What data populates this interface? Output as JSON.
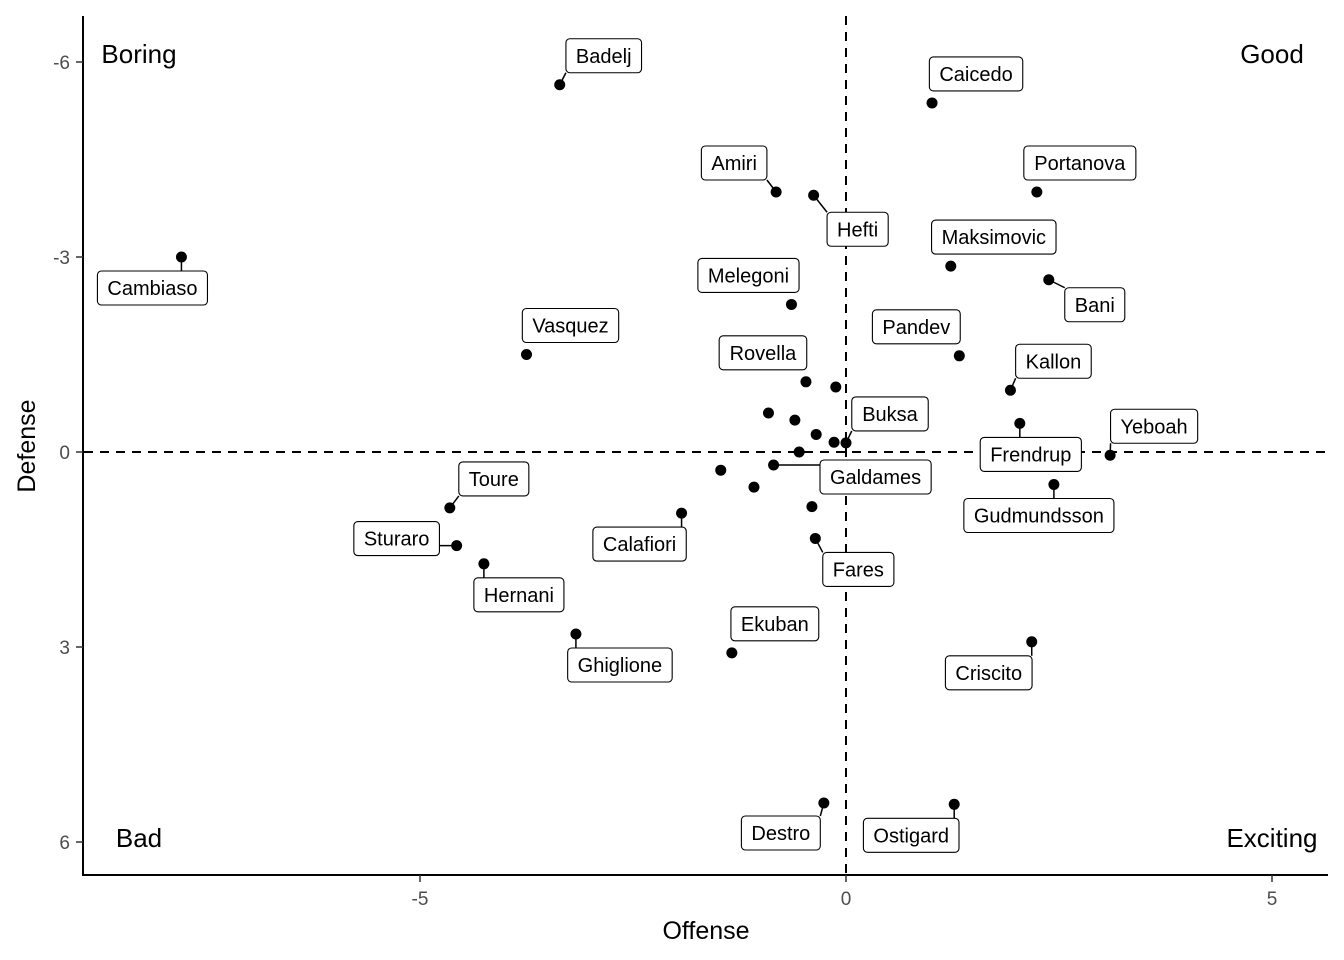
{
  "chart_data": {
    "type": "scatter",
    "title": "",
    "xlabel": "Offense",
    "ylabel": "Defense",
    "xlim": [
      -8.95,
      5.65
    ],
    "ylim": [
      -6.65,
      6.5
    ],
    "y_reversed": true,
    "x_ticks": [
      -5,
      0,
      5
    ],
    "x_tick_labels": [
      "-5",
      "0",
      "5"
    ],
    "y_ticks": [
      -6,
      -3,
      0,
      3,
      6
    ],
    "y_tick_labels": [
      "-6",
      "-3",
      "0",
      "3",
      "6"
    ],
    "reference_lines": {
      "x": 0,
      "y": 0,
      "style": "dashed"
    },
    "grid": false,
    "legend": "none",
    "quadrant_labels": {
      "top_left": "Boring",
      "top_right": "Good",
      "bottom_left": "Bad",
      "bottom_right": "Exciting"
    },
    "points": [
      {
        "name": "Badelj",
        "x": -3.36,
        "y": -5.65
      },
      {
        "name": "Caicedo",
        "x": 1.01,
        "y": -5.37
      },
      {
        "name": "Amiri",
        "x": -0.82,
        "y": -4.0
      },
      {
        "name": "Hefti",
        "x": -0.38,
        "y": -3.95
      },
      {
        "name": "Portanova",
        "x": 2.24,
        "y": -4.0
      },
      {
        "name": "Cambiaso",
        "x": -7.8,
        "y": -3.0
      },
      {
        "name": "Maksimovic",
        "x": 1.23,
        "y": -2.86
      },
      {
        "name": "Bani",
        "x": 2.38,
        "y": -2.65
      },
      {
        "name": "Melegoni",
        "x": -0.64,
        "y": -2.27
      },
      {
        "name": "Vasquez",
        "x": -3.75,
        "y": -1.5
      },
      {
        "name": "Pandev",
        "x": 1.33,
        "y": -1.48
      },
      {
        "name": "Rovella",
        "x": -0.47,
        "y": -1.08
      },
      {
        "name": "Kallon",
        "x": 1.93,
        "y": -0.95
      },
      {
        "name": "Buksa",
        "x": 0.0,
        "y": -0.14
      },
      {
        "name": "Frendrup",
        "x": 2.04,
        "y": -0.44
      },
      {
        "name": "Yeboah",
        "x": 3.1,
        "y": 0.05
      },
      {
        "name": "Galdames",
        "x": -0.85,
        "y": 0.2
      },
      {
        "name": "Gudmundsson",
        "x": 2.44,
        "y": 0.5
      },
      {
        "name": "Toure",
        "x": -4.65,
        "y": 0.86
      },
      {
        "name": "Sturaro",
        "x": -4.57,
        "y": 1.44
      },
      {
        "name": "Calafiori",
        "x": -1.93,
        "y": 0.94
      },
      {
        "name": "Hernani",
        "x": -4.25,
        "y": 1.72
      },
      {
        "name": "Fares",
        "x": -0.36,
        "y": 1.33
      },
      {
        "name": "Ekuban",
        "x": -1.34,
        "y": 3.09
      },
      {
        "name": "Ghiglione",
        "x": -3.17,
        "y": 2.8
      },
      {
        "name": "Criscito",
        "x": 2.18,
        "y": 2.92
      },
      {
        "name": "Destro",
        "x": -0.26,
        "y": 5.4
      },
      {
        "name": "Ostigard",
        "x": 1.27,
        "y": 5.42
      },
      {
        "name": "",
        "x": -0.12,
        "y": -1.0
      },
      {
        "name": "",
        "x": -0.91,
        "y": -0.6
      },
      {
        "name": "",
        "x": -0.6,
        "y": -0.49
      },
      {
        "name": "",
        "x": -0.35,
        "y": -0.27
      },
      {
        "name": "",
        "x": -0.14,
        "y": -0.15
      },
      {
        "name": "",
        "x": -0.55,
        "y": 0.0
      },
      {
        "name": "",
        "x": -1.47,
        "y": 0.28
      },
      {
        "name": "",
        "x": -1.08,
        "y": 0.54
      },
      {
        "name": "",
        "x": -0.4,
        "y": 0.84
      }
    ]
  }
}
